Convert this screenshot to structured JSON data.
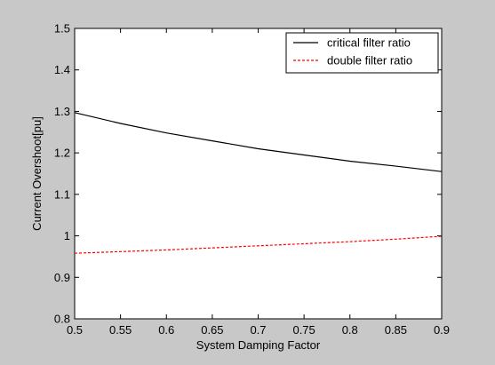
{
  "chart_data": {
    "type": "line",
    "title": "",
    "xlabel": "System Damping Factor",
    "ylabel": "Current Overshoot[pu]",
    "xlim": [
      0.5,
      0.9
    ],
    "ylim": [
      0.8,
      1.5
    ],
    "grid": false,
    "legend_position": "top-right",
    "x_ticks": [
      "0.5",
      "0.55",
      "0.6",
      "0.65",
      "0.7",
      "0.75",
      "0.8",
      "0.85",
      "0.9"
    ],
    "y_ticks": [
      "0.8",
      "0.9",
      "1",
      "1.1",
      "1.2",
      "1.3",
      "1.4",
      "1.5"
    ],
    "series": [
      {
        "name": "critical filter ratio",
        "color": "#000000",
        "style": "solid",
        "x": [
          0.5,
          0.55,
          0.6,
          0.65,
          0.7,
          0.75,
          0.8,
          0.85,
          0.9
        ],
        "y": [
          1.297,
          1.271,
          1.248,
          1.229,
          1.21,
          1.195,
          1.18,
          1.168,
          1.155
        ]
      },
      {
        "name": "double filter ratio",
        "color": "#ff0000",
        "style": "dashed",
        "x": [
          0.5,
          0.55,
          0.6,
          0.65,
          0.7,
          0.75,
          0.8,
          0.85,
          0.9
        ],
        "y": [
          0.958,
          0.962,
          0.966,
          0.971,
          0.976,
          0.981,
          0.986,
          0.992,
          0.999
        ]
      }
    ]
  }
}
